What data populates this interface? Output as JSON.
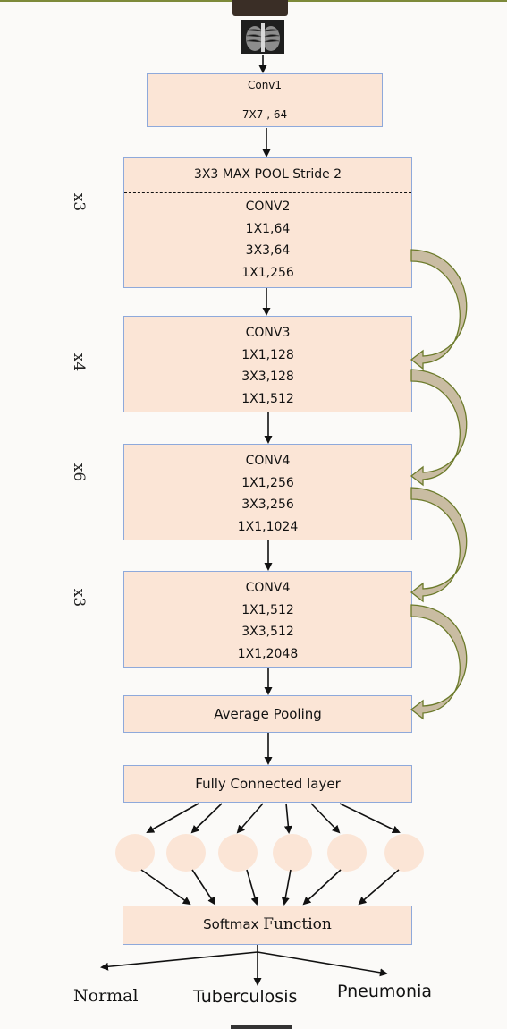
{
  "input": {
    "icon": "chest-xray-icon"
  },
  "conv1": {
    "name": "Conv1",
    "spec": "7X7 , 64"
  },
  "block1": {
    "top": "3X3 MAX POOL Stride 2",
    "name": "CONV2",
    "layers": [
      "1X1,64",
      "3X3,64",
      "1X1,256"
    ],
    "repeat": "x3"
  },
  "block2": {
    "name": "CONV3",
    "layers": [
      "1X1,128",
      "3X3,128",
      "1X1,512"
    ],
    "repeat": "x4"
  },
  "block3": {
    "name": "CONV4",
    "layers": [
      "1X1,256",
      "3X3,256",
      "1X1,1024"
    ],
    "repeat": "x6"
  },
  "block4": {
    "name": "CONV4",
    "layers": [
      "1X1,512",
      "3X3,512",
      "1X1,2048"
    ],
    "repeat": "x3"
  },
  "avgpool": "Average Pooling",
  "fc": "Fully Connected layer",
  "softmax": {
    "word1": "Softmax",
    "word2": "Function"
  },
  "outputs": [
    "Normal",
    "Tuberculosis",
    "Pneumonia"
  ],
  "colors": {
    "box_fill": "#fbe5d6",
    "box_border": "#8ea9db",
    "skip_arrow": "#c9bca2",
    "skip_arrow_border": "#6b7a2a"
  }
}
